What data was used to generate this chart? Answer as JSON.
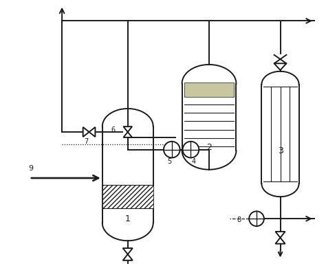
{
  "bg_color": "#ffffff",
  "line_color": "#1a1a1a",
  "lw": 1.4,
  "fig_w": 4.74,
  "fig_h": 3.87,
  "dpi": 100
}
